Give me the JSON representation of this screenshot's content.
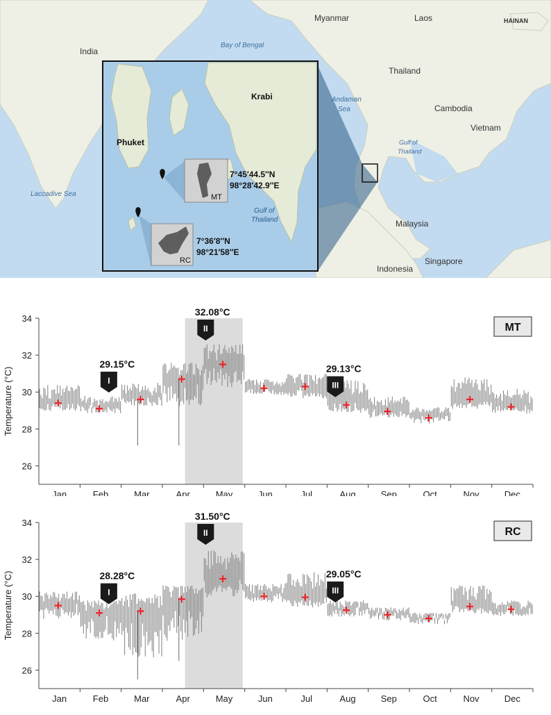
{
  "map": {
    "labels": {
      "india": "India",
      "bay_of_bengal": "Bay of Bengal",
      "myanmar": "Myanmar",
      "laos": "Laos",
      "hainan": "HAINAN",
      "thailand": "Thailand",
      "andaman_sea": "Andaman",
      "andaman_sea_2": "Sea",
      "cambodia": "Cambodia",
      "vietnam": "Vietnam",
      "gulf_thailand_outer_1": "Gulf of",
      "gulf_thailand_outer_2": "Thailand",
      "laccadive_sea": "Laccadive Sea",
      "malaysia": "Malaysia",
      "singapore": "Singapore",
      "indonesia": "Indonesia"
    },
    "inset": {
      "krabi": "Krabi",
      "phuket": "Phuket",
      "gulf_1": "Gulf of",
      "gulf_2": "Thailand",
      "mt_coord_1": "7°45′44.5″N",
      "mt_coord_2": "98°28′42.9″E",
      "mt_tag": "MT",
      "rc_coord_1": "7°36′8″N",
      "rc_coord_2": "98°21′58″E",
      "rc_tag": "RC"
    },
    "colors": {
      "sea": "#c3dbf0",
      "land": "#eef0e6",
      "inset_sea": "#a9cde9",
      "inset_land": "#e6ebd8"
    }
  },
  "chart_data": [
    {
      "type": "line",
      "site": "MT",
      "ylabel": "Temperature (°C)",
      "ylim": [
        25,
        34
      ],
      "yticks": [
        26,
        28,
        30,
        32,
        34
      ],
      "months": [
        "Jan",
        "Feb",
        "Mar",
        "Apr",
        "May",
        "Jun",
        "Jul",
        "Aug",
        "Sep",
        "Oct",
        "Nov",
        "Dec"
      ],
      "monthly_mean": [
        29.4,
        29.1,
        29.6,
        30.7,
        31.5,
        30.2,
        30.3,
        29.3,
        28.95,
        28.6,
        29.6,
        29.2
      ],
      "daily_range": {
        "low": [
          28.9,
          29.0,
          29.1,
          28.6,
          29.6,
          29.8,
          29.4,
          28.8,
          28.6,
          28.4,
          29.0,
          28.8
        ],
        "high": [
          30.4,
          29.8,
          30.5,
          31.6,
          32.6,
          30.7,
          31.0,
          30.7,
          29.8,
          29.2,
          30.8,
          30.2
        ]
      },
      "extreme_dips": [
        {
          "month": "Mar",
          "value": 27.1
        },
        {
          "month": "Apr",
          "value": 27.1
        }
      ],
      "highlight_period": [
        "Apr",
        "May"
      ],
      "events": [
        {
          "marker": "I",
          "value_label": "29.15°C",
          "month": "Mar"
        },
        {
          "marker": "II",
          "value_label": "32.08°C",
          "month": "May"
        },
        {
          "marker": "III",
          "value_label": "29.13°C",
          "month": "Aug"
        }
      ],
      "colors": {
        "range": "#7f7f7f",
        "mean": "#e8262a",
        "highlight": "#dcdcdc",
        "marker": "#1a1a1a"
      }
    },
    {
      "type": "line",
      "site": "RC",
      "ylabel": "Temperature (°C)",
      "ylim": [
        25,
        34
      ],
      "yticks": [
        26,
        28,
        30,
        32,
        34
      ],
      "months": [
        "Jan",
        "Feb",
        "Mar",
        "Apr",
        "May",
        "Jun",
        "Jul",
        "Aug",
        "Sep",
        "Oct",
        "Nov",
        "Dec"
      ],
      "monthly_mean": [
        29.5,
        29.1,
        29.2,
        29.85,
        30.95,
        30.0,
        29.95,
        29.25,
        29.0,
        28.8,
        29.45,
        29.3
      ],
      "daily_range": {
        "low": [
          28.6,
          27.0,
          25.5,
          26.6,
          29.5,
          29.7,
          29.3,
          28.9,
          28.7,
          28.5,
          29.0,
          28.9
        ],
        "high": [
          30.3,
          29.8,
          30.2,
          30.6,
          32.5,
          30.7,
          31.4,
          29.8,
          29.4,
          29.1,
          30.6,
          29.8
        ]
      },
      "extreme_dips": [
        {
          "month": "Mar",
          "value": 25.5
        },
        {
          "month": "Apr",
          "value": 26.5
        }
      ],
      "highlight_period": [
        "Apr",
        "May"
      ],
      "events": [
        {
          "marker": "I",
          "value_label": "28.28°C",
          "month": "Mar"
        },
        {
          "marker": "II",
          "value_label": "31.50°C",
          "month": "May"
        },
        {
          "marker": "III",
          "value_label": "29.05°C",
          "month": "Aug"
        }
      ],
      "colors": {
        "range": "#7f7f7f",
        "mean": "#e8262a",
        "highlight": "#dcdcdc",
        "marker": "#1a1a1a"
      }
    }
  ]
}
